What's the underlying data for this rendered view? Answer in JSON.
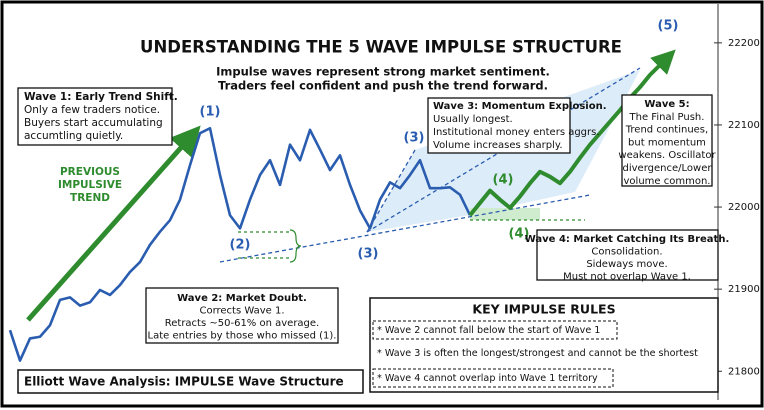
{
  "chart_data": {
    "type": "line",
    "title": "UNDERSTANDING THE 5 WAVE IMPULSE STRUCTURE",
    "subtitle": [
      "Impulse waves represent strong market sentiment.",
      "Traders feel confident and push the trend forward."
    ],
    "x": [
      0,
      1,
      2,
      3,
      4,
      5,
      6,
      7,
      8,
      9,
      10,
      11,
      12,
      13,
      14,
      15,
      16,
      17,
      18,
      19,
      20,
      21,
      22,
      23,
      24,
      25,
      26,
      27,
      28,
      29,
      30,
      31,
      32,
      33,
      34,
      35,
      36,
      37,
      38,
      39,
      40,
      41,
      42,
      43,
      44,
      45,
      46,
      47,
      48,
      49,
      50,
      51,
      52,
      53,
      54,
      55,
      56,
      57,
      58,
      59,
      60,
      61,
      62,
      63,
      64,
      65,
      66
    ],
    "xlim": [
      0,
      66
    ],
    "ylim": [
      21765,
      22240
    ],
    "yticks": [
      21800,
      21900,
      22000,
      22100,
      22200
    ],
    "series": [
      {
        "color": "#2a5db0",
        "values": [
          21850,
          21813,
          21840,
          21842,
          21856,
          21887,
          21890,
          21880,
          21884,
          21899,
          21893,
          21905,
          21921,
          21933,
          21954,
          21970,
          21984,
          22009,
          22051,
          22090,
          22096,
          22039,
          21990,
          21974,
          22009,
          22039,
          22057,
          22027,
          22076,
          22057,
          22094,
          22070,
          22045,
          22063,
          22027,
          21996,
          21974,
          22009,
          22030,
          22023,
          22039,
          22057,
          22023,
          22023,
          22024,
          22015,
          21990,
          null,
          null,
          null,
          null,
          null,
          null,
          null,
          null,
          null,
          null,
          null,
          null,
          null,
          null,
          null,
          null,
          null,
          null,
          null,
          null
        ]
      },
      {
        "color": "#2e8b2e",
        "values": [
          null,
          null,
          null,
          null,
          null,
          null,
          null,
          null,
          null,
          null,
          null,
          null,
          null,
          null,
          null,
          null,
          null,
          null,
          null,
          null,
          null,
          null,
          null,
          null,
          null,
          null,
          null,
          null,
          null,
          null,
          null,
          null,
          null,
          null,
          null,
          null,
          null,
          null,
          null,
          null,
          null,
          null,
          null,
          null,
          null,
          null,
          21990,
          22005,
          22020,
          22009,
          21999,
          22013,
          22029,
          22043,
          22037,
          22029,
          22043,
          22060,
          22076,
          22090,
          22104,
          22118,
          22133,
          22146,
          22161,
          22173,
          22185
        ]
      }
    ],
    "wave_labels": [
      "(1)",
      "(2)",
      "(3)",
      "(3)",
      "(4)",
      "(4)",
      "(5)"
    ],
    "annotations": {
      "wave1": [
        "Wave 1: Early Trend Shift.",
        "Only a few traders notice.",
        "Buyers start accumulating",
        "accumtling quietly."
      ],
      "previous": [
        "PREVIOUS",
        "IMPULSIVE",
        "TREND"
      ],
      "wave2": [
        "Wave 2: Market Doubt.",
        "Corrects Wave 1.",
        "Retracts ~50-61% on average.",
        "Late entries by those who missed (1)."
      ],
      "wave3": [
        "Wave 3: Momentum Explosion.",
        "Usually longest.",
        "Institutional money enters aggrs.",
        "Volume increases sharply."
      ],
      "wave4": [
        "Wave 4: Market Catching Its Breath.",
        "Consolidation.",
        "Sideways move.",
        "Must not overlap Wave 1."
      ],
      "wave5": [
        "Wave 5:",
        "The Final Push.",
        "Trend continues,",
        "but momentum",
        "weakens. Oscillator",
        "divergence/Lower",
        "volume common."
      ]
    },
    "rules_title": "KEY IMPULSE RULES",
    "rules": [
      "* Wave 2 cannot fall below the start of Wave 1",
      "* Wave 3 is often the longest/strongest and cannot be the shortest",
      "* Wave 4 cannot overlap into Wave 1 territory"
    ],
    "footer": "Elliott Wave Analysis: IMPULSE Wave Structure"
  }
}
